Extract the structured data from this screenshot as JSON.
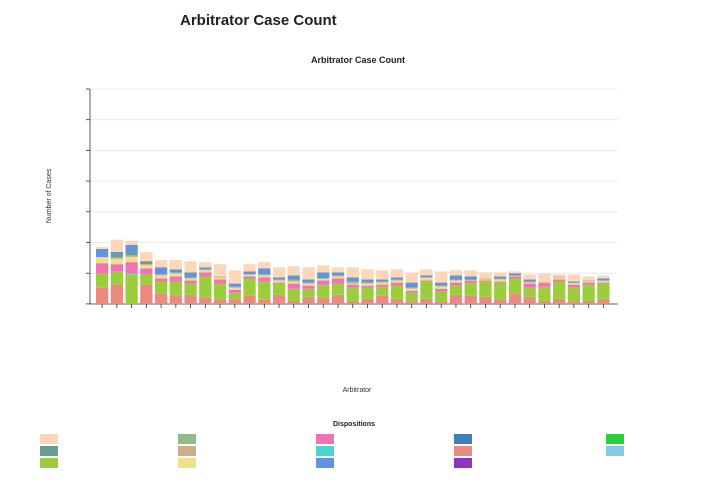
{
  "page_title": "Arbitrator Case Count",
  "chart_data": {
    "type": "bar",
    "stacked": true,
    "title": "Arbitrator Case Count",
    "xlabel": "Arbitrator",
    "ylabel": "Number of Cases",
    "legend_title": "Dispositions",
    "grid": true,
    "legend_position": "bottom",
    "n_bars": 35,
    "series": [
      {
        "color": "#ec8a82",
        "values": [
          16,
          19,
          0,
          19,
          10,
          8,
          9,
          6,
          4,
          4,
          8,
          4,
          9,
          3,
          7,
          6,
          9,
          3,
          5,
          8,
          5,
          2,
          5,
          2,
          9,
          8,
          7,
          4,
          10,
          7,
          3,
          5,
          2,
          3,
          5
        ]
      },
      {
        "color": "#9ccd3c",
        "values": [
          14,
          13,
          29,
          10,
          12,
          14,
          11,
          21,
          16,
          7,
          17,
          18,
          11,
          12,
          8,
          13,
          11,
          13,
          11,
          9,
          13,
          9,
          17,
          10,
          9,
          13,
          15,
          17,
          15,
          9,
          14,
          17,
          14,
          16,
          15
        ]
      },
      {
        "color": "#2bd13a",
        "values": [
          0,
          0,
          0,
          0,
          0,
          0,
          0,
          0,
          0,
          0,
          0,
          0,
          0,
          0,
          0,
          0,
          0,
          0,
          0,
          0,
          0,
          0,
          0,
          0,
          0,
          0,
          0,
          0,
          0,
          0,
          0,
          0,
          0,
          0,
          0
        ]
      },
      {
        "color": "#9333c2",
        "values": [
          0,
          0,
          0,
          0,
          0,
          0,
          0,
          0,
          0,
          0,
          0,
          0,
          0,
          0,
          0,
          0,
          0,
          0,
          0,
          0,
          0,
          0,
          0,
          0,
          0,
          0,
          0,
          0,
          0,
          0,
          0,
          0,
          0,
          0,
          0
        ]
      },
      {
        "color": "#47d6d3",
        "values": [
          0,
          0,
          1,
          0,
          0,
          0,
          0,
          0,
          0,
          0,
          0,
          0,
          0,
          0,
          0,
          0,
          0,
          0,
          0,
          0,
          0,
          0,
          0,
          0,
          0,
          0,
          0,
          0,
          0,
          0,
          0,
          0,
          0,
          0,
          0
        ]
      },
      {
        "color": "#f271b8",
        "values": [
          10,
          7,
          11,
          6,
          3,
          5,
          3,
          4,
          4,
          3,
          2,
          4,
          1,
          5,
          3,
          4,
          5,
          3,
          2,
          2,
          3,
          2,
          1,
          3,
          3,
          2,
          1,
          1,
          2,
          4,
          4,
          2,
          3,
          2,
          1
        ]
      },
      {
        "color": "#ede28a",
        "values": [
          6,
          5,
          5,
          3,
          3,
          3,
          2,
          2,
          2,
          2,
          2,
          2,
          2,
          2,
          2,
          2,
          2,
          1,
          2,
          2,
          2,
          2,
          3,
          2,
          2,
          1,
          1,
          2,
          1,
          1,
          1,
          2,
          2,
          1,
          2
        ]
      },
      {
        "color": "#cdb088",
        "values": [
          0,
          1,
          1,
          1,
          1,
          0,
          1,
          1,
          1,
          1,
          0,
          1,
          1,
          1,
          1,
          0,
          1,
          1,
          1,
          1,
          1,
          1,
          0,
          1,
          1,
          0,
          1,
          1,
          0,
          1,
          0,
          1,
          0,
          1,
          0
        ]
      },
      {
        "color": "#94bb8b",
        "values": [
          0,
          1,
          1,
          0,
          0,
          1,
          0,
          0,
          0,
          0,
          0,
          0,
          0,
          1,
          0,
          0,
          0,
          1,
          0,
          0,
          0,
          0,
          0,
          0,
          0,
          0,
          0,
          0,
          0,
          0,
          0,
          0,
          0,
          0,
          0
        ]
      },
      {
        "color": "#6a9e93",
        "values": [
          0,
          3,
          3,
          3,
          0,
          0,
          1,
          0,
          0,
          0,
          0,
          0,
          0,
          0,
          0,
          0,
          0,
          0,
          0,
          0,
          0,
          0,
          0,
          0,
          0,
          0,
          0,
          0,
          0,
          0,
          0,
          0,
          0,
          0,
          0
        ]
      },
      {
        "color": "#3f80b8",
        "values": [
          0,
          0,
          0,
          0,
          0,
          0,
          0,
          0,
          0,
          0,
          0,
          0,
          0,
          0,
          0,
          0,
          0,
          0,
          0,
          0,
          0,
          0,
          0,
          0,
          0,
          1,
          0,
          0,
          1,
          0,
          0,
          0,
          1,
          0,
          0
        ]
      },
      {
        "color": "#87c9e2",
        "values": [
          0,
          0,
          0,
          0,
          0,
          0,
          0,
          0,
          0,
          0,
          0,
          0,
          0,
          0,
          0,
          0,
          0,
          0,
          0,
          0,
          0,
          0,
          0,
          0,
          0,
          0,
          0,
          0,
          0,
          0,
          0,
          0,
          0,
          0,
          0
        ]
      },
      {
        "color": "#5f95e0",
        "values": [
          8,
          2,
          7,
          0,
          7,
          3,
          4,
          2,
          0,
          3,
          3,
          6,
          2,
          4,
          3,
          6,
          3,
          4,
          3,
          2,
          2,
          5,
          2,
          3,
          4,
          2,
          0,
          2,
          1,
          2,
          0,
          0,
          0,
          0,
          2
        ]
      },
      {
        "color": "#fdd7b8",
        "values": [
          2,
          12,
          4,
          9,
          7,
          9,
          11,
          5,
          12,
          13,
          7,
          6,
          10,
          9,
          12,
          7,
          5,
          10,
          10,
          9,
          8,
          10,
          6,
          11,
          5,
          6,
          6,
          4,
          2,
          5,
          8,
          2,
          7,
          4,
          3
        ]
      }
    ]
  }
}
